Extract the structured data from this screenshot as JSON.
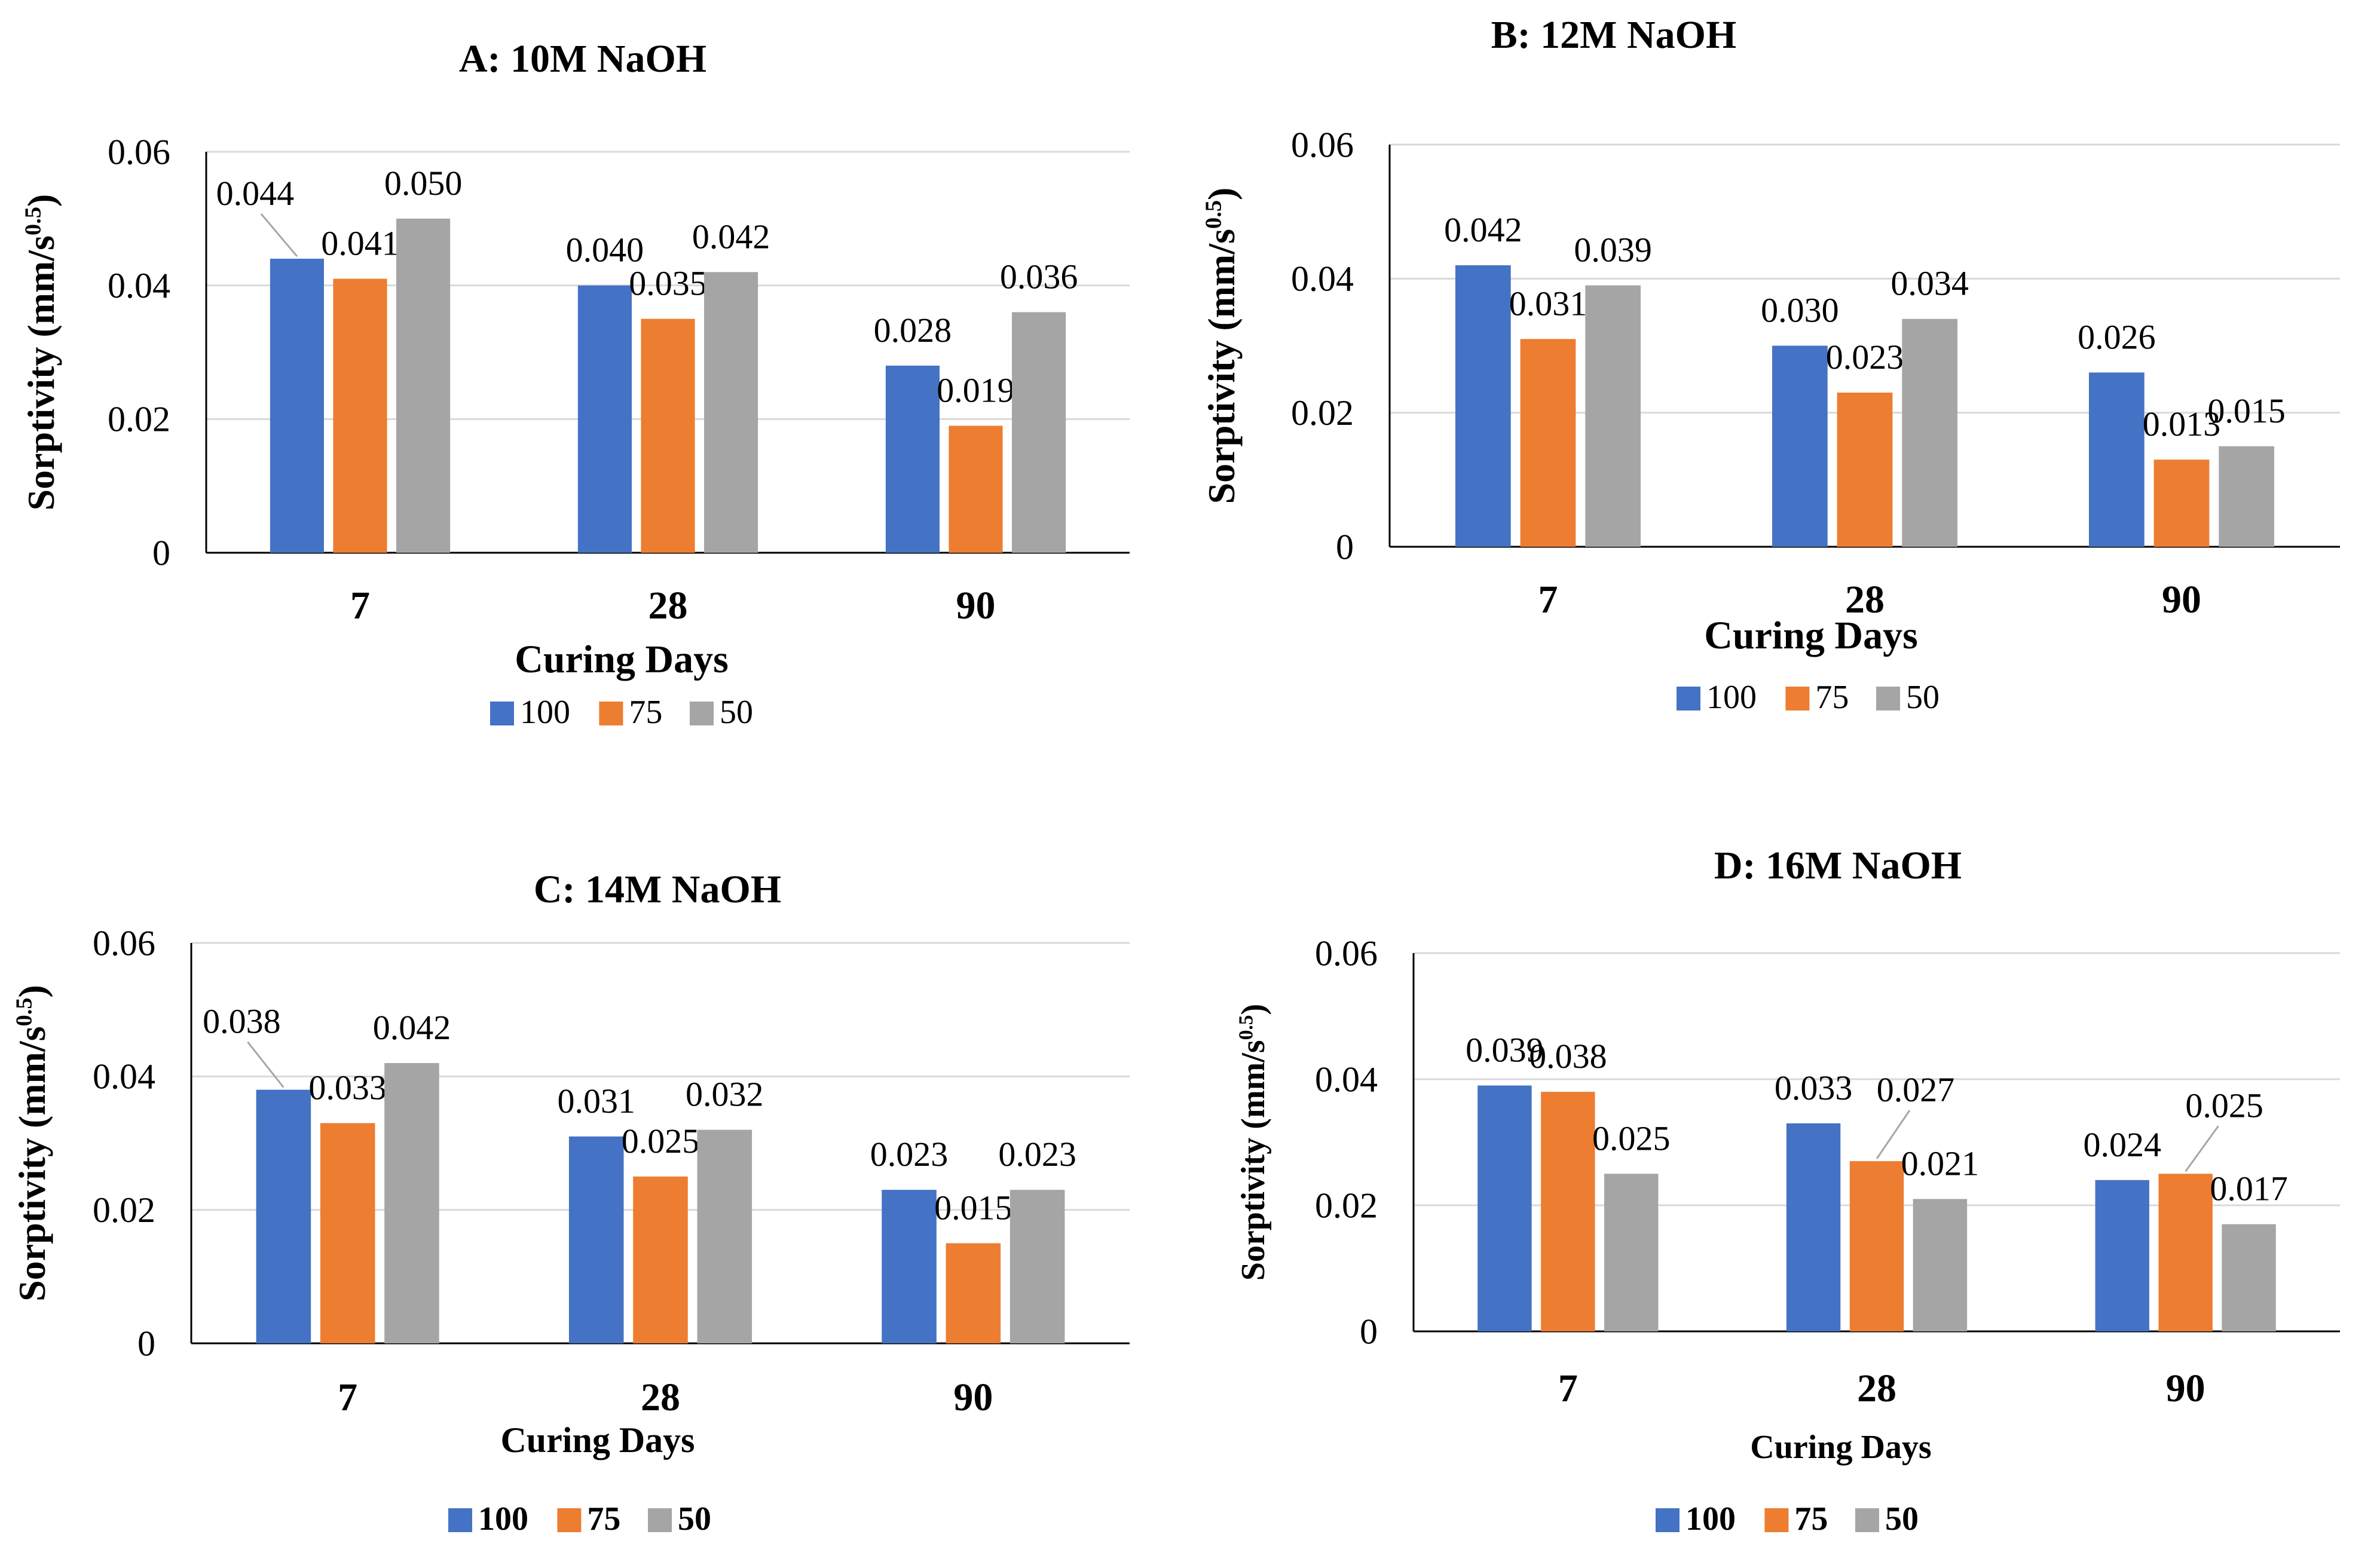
{
  "figure": {
    "colors": {
      "s100": "#4472c4",
      "s75": "#ed7d31",
      "s50": "#a5a5a5",
      "grid": "#d9d9d9",
      "axis": "#000000",
      "leader": "#a6a6a6"
    }
  },
  "chart_data": [
    {
      "id": "A",
      "type": "bar",
      "title": "A: 10M NaOH",
      "xlabel": "Curing Days",
      "ylabel_main": "Sorptivity (mm/s",
      "ylabel_sup": "0.5",
      "ylabel_close": ")",
      "ylim": [
        0,
        0.06
      ],
      "yticks": [
        "0",
        "0.02",
        "0.04",
        "0.06"
      ],
      "grid": true,
      "legend_position": "bottom",
      "categories": [
        "7",
        "28",
        "90"
      ],
      "series": [
        {
          "name": "100",
          "values": [
            0.044,
            0.04,
            0.028
          ],
          "labels": [
            "0.044",
            "0.040",
            "0.028"
          ]
        },
        {
          "name": "75",
          "values": [
            0.041,
            0.035,
            0.019
          ],
          "labels": [
            "0.041",
            "0.035",
            "0.019"
          ]
        },
        {
          "name": "50",
          "values": [
            0.05,
            0.042,
            0.036
          ],
          "labels": [
            "0.050",
            "0.042",
            "0.036"
          ]
        }
      ]
    },
    {
      "id": "B",
      "type": "bar",
      "title": "B: 12M NaOH",
      "xlabel": "Curing Days",
      "ylabel_main": "Sorptivity (mm/s",
      "ylabel_sup": "0.5",
      "ylabel_close": ")",
      "ylim": [
        0,
        0.06
      ],
      "yticks": [
        "0",
        "0.02",
        "0.04",
        "0.06"
      ],
      "grid": true,
      "legend_position": "bottom",
      "categories": [
        "7",
        "28",
        "90"
      ],
      "series": [
        {
          "name": "100",
          "values": [
            0.042,
            0.03,
            0.026
          ],
          "labels": [
            "0.042",
            "0.030",
            "0.026"
          ]
        },
        {
          "name": "75",
          "values": [
            0.031,
            0.023,
            0.013
          ],
          "labels": [
            "0.031",
            "0.023",
            "0.013"
          ]
        },
        {
          "name": "50",
          "values": [
            0.039,
            0.034,
            0.015
          ],
          "labels": [
            "0.039",
            "0.034",
            "0.015"
          ]
        }
      ]
    },
    {
      "id": "C",
      "type": "bar",
      "title": "C: 14M NaOH",
      "xlabel": "Curing Days",
      "ylabel_main": "Sorptivity (mm/s",
      "ylabel_sup": "0.5",
      "ylabel_close": ")",
      "ylim": [
        0,
        0.06
      ],
      "yticks": [
        "0",
        "0.02",
        "0.04",
        "0.06"
      ],
      "grid": true,
      "legend_position": "bottom",
      "categories": [
        "7",
        "28",
        "90"
      ],
      "series": [
        {
          "name": "100",
          "values": [
            0.038,
            0.031,
            0.023
          ],
          "labels": [
            "0.038",
            "0.031",
            "0.023"
          ]
        },
        {
          "name": "75",
          "values": [
            0.033,
            0.025,
            0.015
          ],
          "labels": [
            "0.033",
            "0.025",
            "0.015"
          ]
        },
        {
          "name": "50",
          "values": [
            0.042,
            0.032,
            0.023
          ],
          "labels": [
            "0.042",
            "0.032",
            "0.023"
          ]
        }
      ]
    },
    {
      "id": "D",
      "type": "bar",
      "title": "D: 16M NaOH",
      "xlabel": "Curing Days",
      "ylabel_main": "Sorptivity (mm/s",
      "ylabel_sup": "0.5",
      "ylabel_close": ")",
      "ylim": [
        0,
        0.06
      ],
      "yticks": [
        "0",
        "0.02",
        "0.04",
        "0.06"
      ],
      "grid": true,
      "legend_position": "bottom",
      "categories": [
        "7",
        "28",
        "90"
      ],
      "series": [
        {
          "name": "100",
          "values": [
            0.039,
            0.033,
            0.024
          ],
          "labels": [
            "0.039",
            "0.033",
            "0.024"
          ]
        },
        {
          "name": "75",
          "values": [
            0.038,
            0.027,
            0.025
          ],
          "labels": [
            "0.038",
            "0.027",
            "0.025"
          ]
        },
        {
          "name": "50",
          "values": [
            0.025,
            0.021,
            0.017
          ],
          "labels": [
            "0.025",
            "0.021",
            "0.017"
          ]
        }
      ]
    }
  ]
}
